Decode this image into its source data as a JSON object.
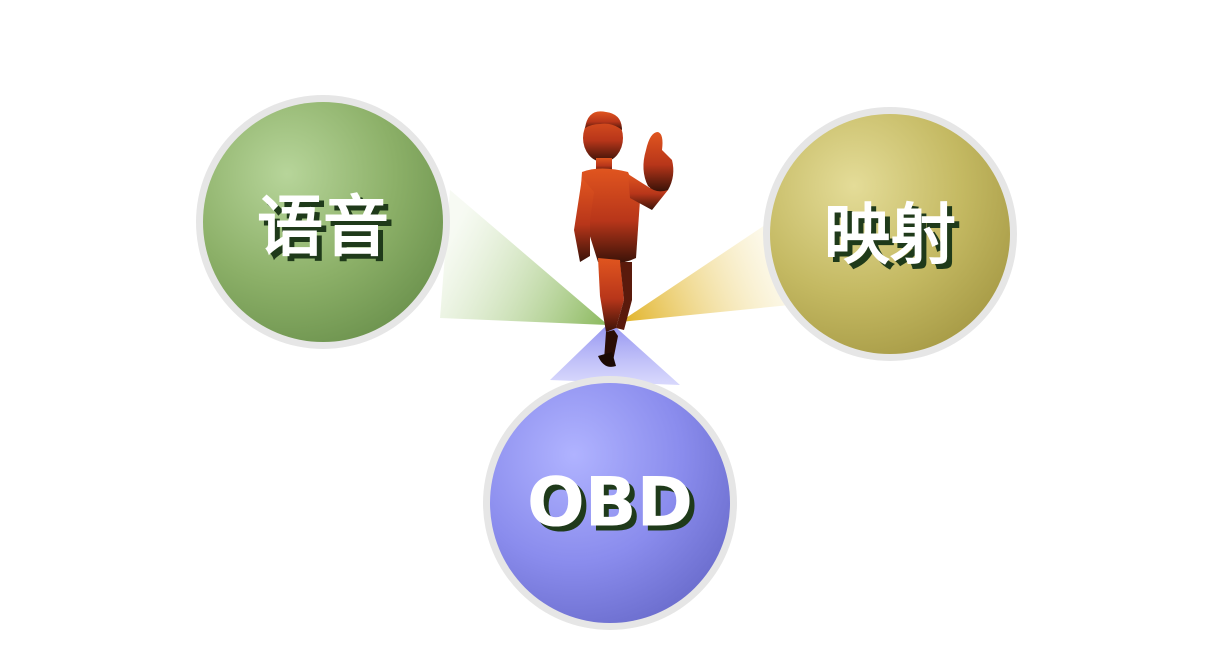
{
  "diagram": {
    "nodes": [
      {
        "id": "voice",
        "label": "语音",
        "color": "#8fb46a"
      },
      {
        "id": "mapping",
        "label": "映射",
        "color": "#c9bf6a"
      },
      {
        "id": "obd",
        "label": "OBD",
        "color": "#8c8fe6"
      }
    ],
    "center_figure": {
      "icon": "thumbs-up-person-icon",
      "color": "#c8401c"
    }
  }
}
